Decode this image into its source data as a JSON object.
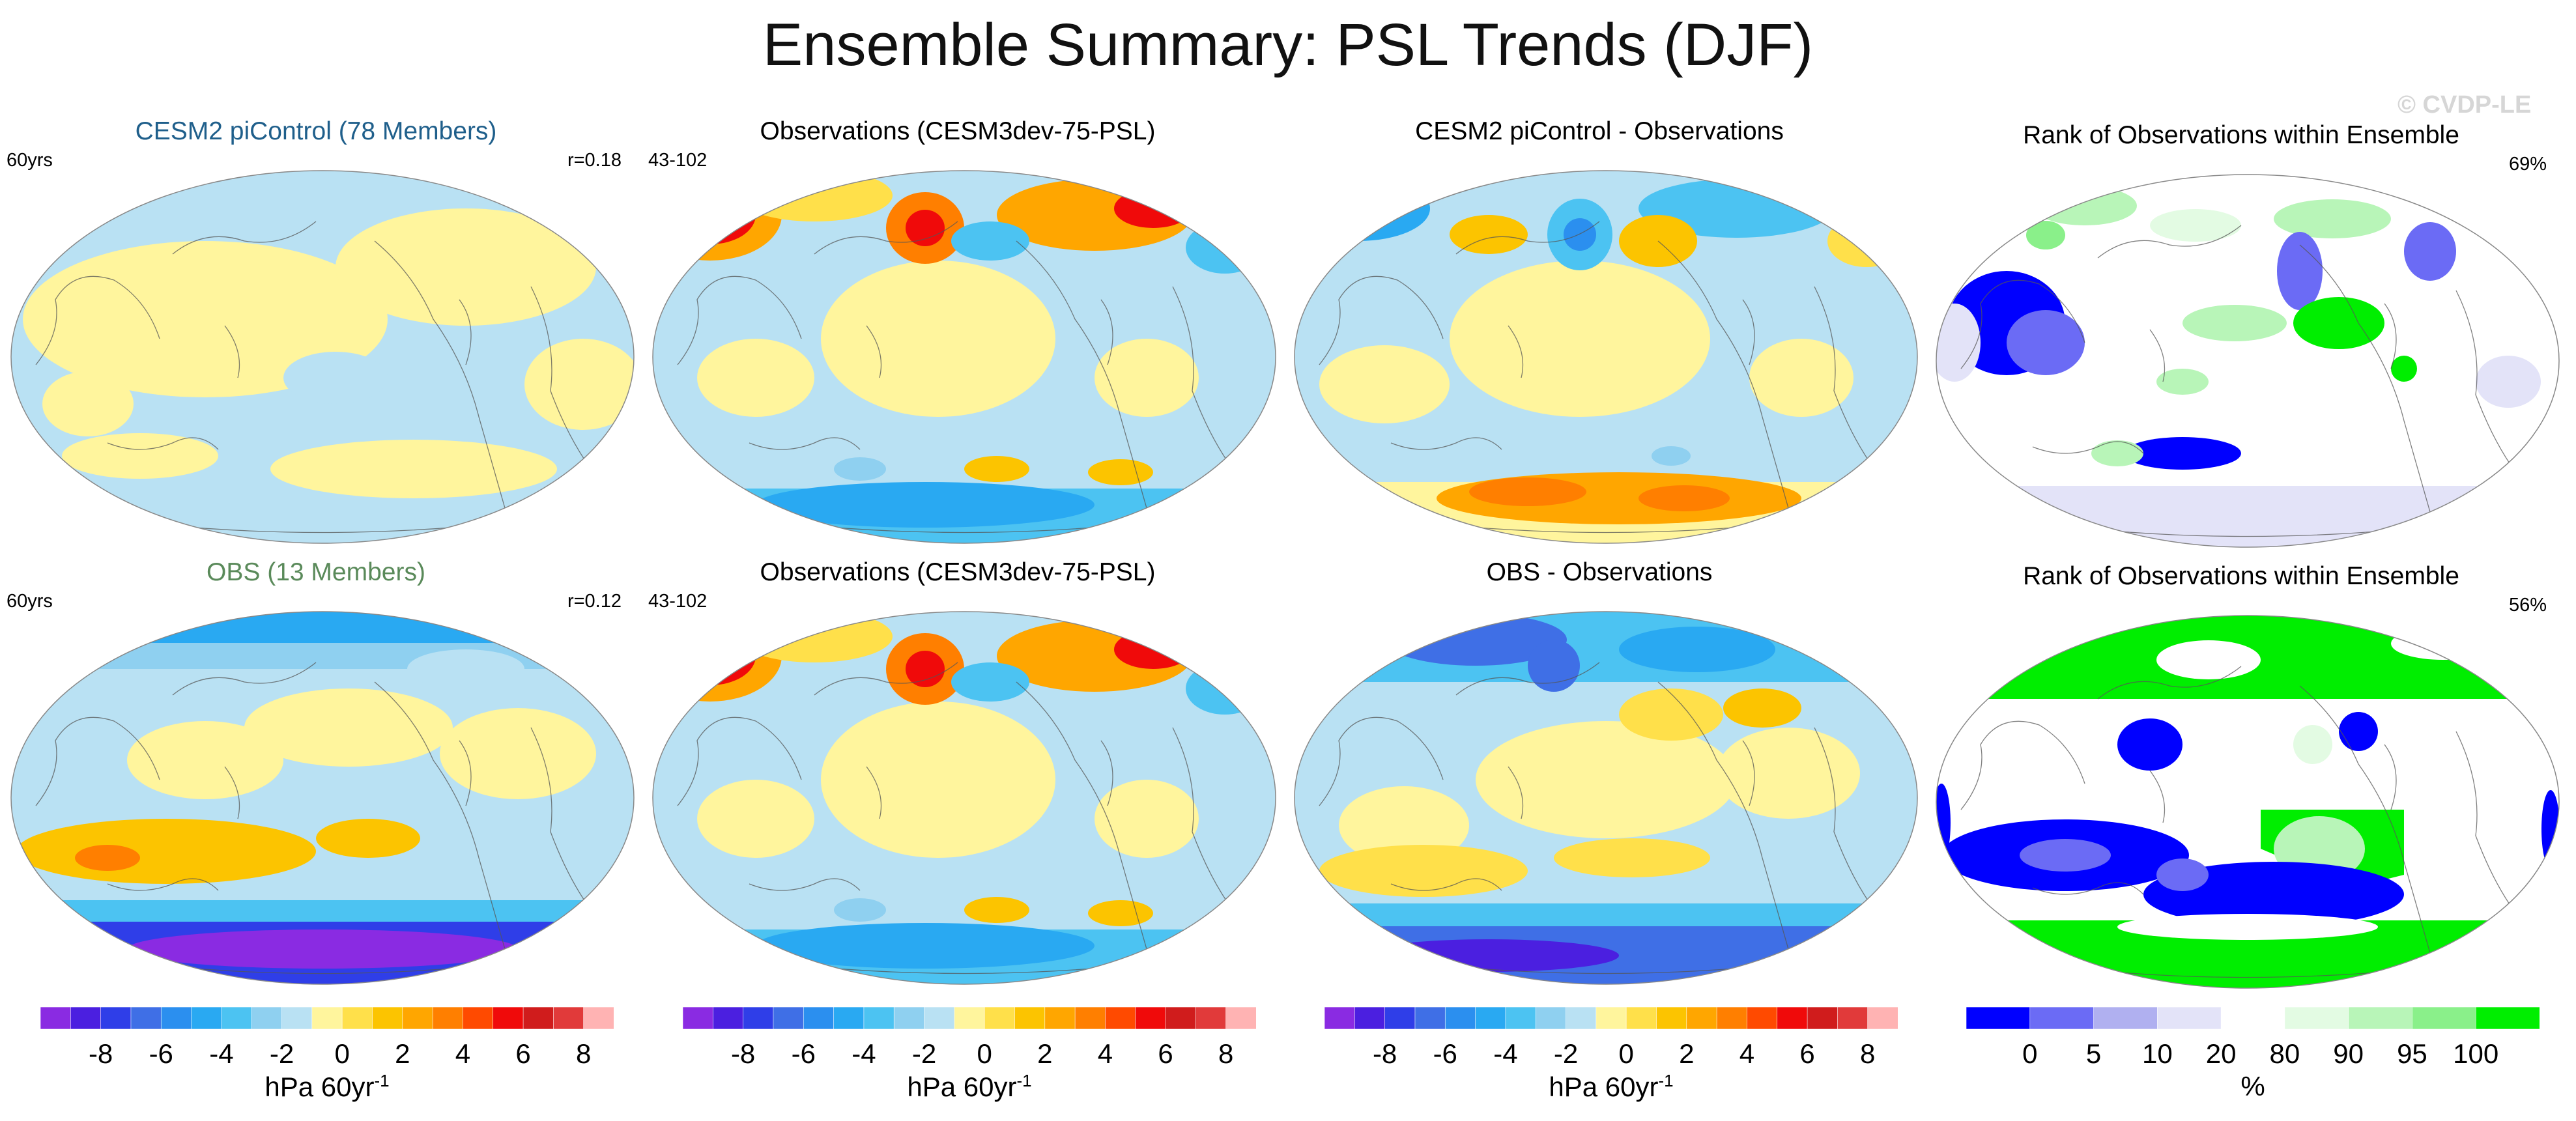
{
  "title": "Ensemble Summary: PSL Trends (DJF)",
  "watermark": "© CVDP-LE",
  "colors": {
    "title_blue": "#1f5f8b",
    "title_green": "#5a8a5a",
    "land_yellow": "#fff59d",
    "ocean_blue": "#b3dcf2",
    "rank_white": "#ffffff"
  },
  "panels": [
    {
      "id": "p1",
      "title": "CESM2 piControl (78 Members)",
      "title_color": "title_blue",
      "left_label": "60yrs",
      "right_label": "r=0.18",
      "map_type": "ensemble-mean"
    },
    {
      "id": "p2",
      "title": "Observations (CESM3dev-75-PSL)",
      "title_color": "",
      "left_label": "43-102",
      "right_label": "",
      "map_type": "observations"
    },
    {
      "id": "p3",
      "title": "CESM2 piControl - Observations",
      "title_color": "",
      "left_label": "",
      "right_label": "",
      "map_type": "difference"
    },
    {
      "id": "p4",
      "title": "Rank of Observations within Ensemble",
      "title_color": "",
      "left_label": "",
      "right_label": "69%",
      "map_type": "rank"
    },
    {
      "id": "p5",
      "title": "OBS (13 Members)",
      "title_color": "title_green",
      "left_label": "60yrs",
      "right_label": "r=0.12",
      "map_type": "ensemble-mean-obs"
    },
    {
      "id": "p6",
      "title": "Observations (CESM3dev-75-PSL)",
      "title_color": "",
      "left_label": "43-102",
      "right_label": "",
      "map_type": "observations"
    },
    {
      "id": "p7",
      "title": "OBS - Observations",
      "title_color": "",
      "left_label": "",
      "right_label": "",
      "map_type": "difference-obs"
    },
    {
      "id": "p8",
      "title": "Rank of Observations within Ensemble",
      "title_color": "",
      "left_label": "",
      "right_label": "56%",
      "map_type": "rank-obs"
    }
  ],
  "chart_data": [
    {
      "type": "colorbar",
      "name": "psl-trend-colorbar",
      "units": "hPa 60yr",
      "units_superscript": "-1",
      "levels": [
        -9,
        -8,
        -7,
        -6,
        -5,
        -4,
        -3,
        -2,
        -1,
        0,
        1,
        2,
        3,
        4,
        5,
        6,
        7,
        8,
        9
      ],
      "tick_labels": [
        "-8",
        "-6",
        "-4",
        "-2",
        "0",
        "2",
        "4",
        "6",
        "8"
      ],
      "tick_values": [
        -8,
        -6,
        -4,
        -2,
        0,
        2,
        4,
        6,
        8
      ],
      "colors": [
        "#8a2be2",
        "#4b1fe0",
        "#2f3ee8",
        "#3f6fe6",
        "#2b8fef",
        "#29a9f2",
        "#4cc3f2",
        "#8fd0f0",
        "#b9e1f3",
        "#fff59d",
        "#ffe04a",
        "#fcc400",
        "#ffa600",
        "#ff7f00",
        "#ff4a00",
        "#f00a0a",
        "#d01c1c",
        "#e13a3a",
        "#ffb3b3"
      ]
    },
    {
      "type": "colorbar",
      "name": "rank-colorbar",
      "units": "%",
      "category_edges": [
        0,
        5,
        10,
        20,
        80,
        90,
        95,
        100
      ],
      "tick_labels": [
        "0",
        "5",
        "10",
        "20",
        "80",
        "90",
        "95",
        "100"
      ],
      "colors": [
        "#0000ff",
        "#6b6bf5",
        "#b0b0f0",
        "#e3e3f8",
        "#ffffff",
        "#e3fbe3",
        "#b8f5b8",
        "#8af08a",
        "#00ee00"
      ]
    }
  ]
}
